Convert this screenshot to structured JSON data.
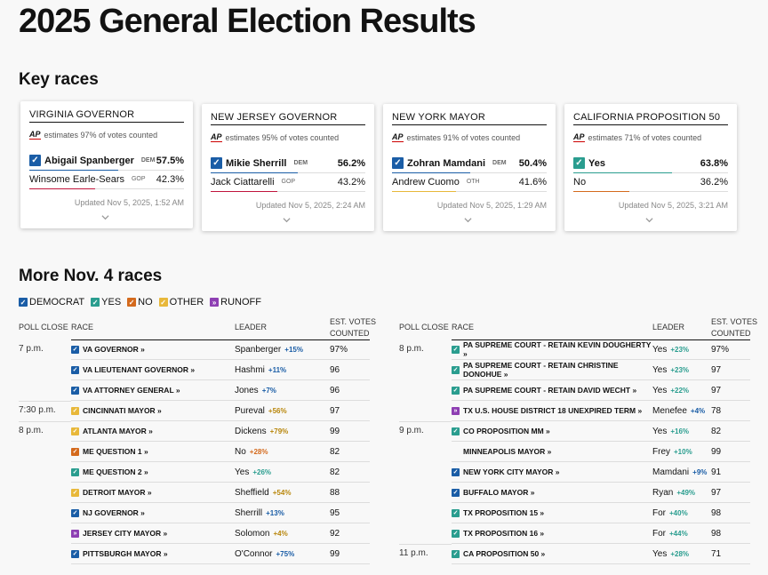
{
  "page_title": "2025 General Election Results",
  "key_races_title": "Key races",
  "more_races_title": "More Nov. 4 races",
  "colors": {
    "dem": "#1a5da6",
    "gop": "#c0143c",
    "yes": "#2a9d8f",
    "no": "#d46a1d",
    "other": "#e8b83a",
    "runoff": "#8e3fb3"
  },
  "cards": [
    {
      "title": "VIRGINIA GOVERNOR",
      "ap_label": "AP",
      "estimate": "estimates 97% of votes counted",
      "candidates": [
        {
          "name": "Abigail Spanberger",
          "party": "DEM",
          "pct": "57.5%",
          "winner": true,
          "color": "#1a5da6",
          "share": 57.5
        },
        {
          "name": "Winsome Earle-Sears",
          "party": "GOP",
          "pct": "42.3%",
          "winner": false,
          "color": "#c0143c",
          "share": 42.3
        }
      ],
      "updated": "Updated Nov 5, 2025, 1:52 AM"
    },
    {
      "title": "NEW JERSEY GOVERNOR",
      "ap_label": "AP",
      "estimate": "estimates 95% of votes counted",
      "candidates": [
        {
          "name": "Mikie Sherrill",
          "party": "DEM",
          "pct": "56.2%",
          "winner": true,
          "color": "#1a5da6",
          "share": 56.2
        },
        {
          "name": "Jack Ciattarelli",
          "party": "GOP",
          "pct": "43.2%",
          "winner": false,
          "color": "#c0143c",
          "share": 43.2
        }
      ],
      "updated": "Updated Nov 5, 2025, 2:24 AM"
    },
    {
      "title": "NEW YORK MAYOR",
      "ap_label": "AP",
      "estimate": "estimates 91% of votes counted",
      "candidates": [
        {
          "name": "Zohran Mamdani",
          "party": "DEM",
          "pct": "50.4%",
          "winner": true,
          "color": "#1a5da6",
          "share": 50.4
        },
        {
          "name": "Andrew Cuomo",
          "party": "OTH",
          "pct": "41.6%",
          "winner": false,
          "color": "#e8b83a",
          "share": 41.6
        }
      ],
      "updated": "Updated Nov 5, 2025, 1:29 AM"
    },
    {
      "title": "CALIFORNIA PROPOSITION 50",
      "ap_label": "AP",
      "estimate": "estimates 71% of votes counted",
      "candidates": [
        {
          "name": "Yes",
          "party": "",
          "pct": "63.8%",
          "winner": true,
          "color": "#2a9d8f",
          "share": 63.8
        },
        {
          "name": "No",
          "party": "",
          "pct": "36.2%",
          "winner": false,
          "color": "#d46a1d",
          "share": 36.2
        }
      ],
      "updated": "Updated Nov 5, 2025, 3:21 AM"
    }
  ],
  "legend": [
    {
      "label": "DEMOCRAT",
      "color": "#1a5da6"
    },
    {
      "label": "YES",
      "color": "#2a9d8f"
    },
    {
      "label": "NO",
      "color": "#d46a1d"
    },
    {
      "label": "OTHER",
      "color": "#e8b83a"
    },
    {
      "label": "RUNOFF",
      "color": "#8e3fb3",
      "glyph": "»"
    }
  ],
  "table_headers": {
    "poll_close": "POLL CLOSE",
    "race": "RACE",
    "leader": "LEADER",
    "votes_line1": "EST. VOTES",
    "votes_line2": "COUNTED"
  },
  "left_table": [
    {
      "close": "7 p.m.",
      "race": "VA GOVERNOR »",
      "mark": "dem",
      "leader": "Spanberger",
      "margin": "+15%",
      "mcolor": "dem",
      "votes": "97%"
    },
    {
      "close": "",
      "race": "VA LIEUTENANT GOVERNOR »",
      "mark": "dem",
      "leader": "Hashmi",
      "margin": "+11%",
      "mcolor": "dem",
      "votes": "96"
    },
    {
      "close": "",
      "race": "VA ATTORNEY GENERAL »",
      "mark": "dem",
      "leader": "Jones",
      "margin": "+7%",
      "mcolor": "dem",
      "votes": "96"
    },
    {
      "close": "7:30 p.m.",
      "race": "CINCINNATI MAYOR »",
      "mark": "other",
      "leader": "Pureval",
      "margin": "+56%",
      "mcolor": "other",
      "votes": "97"
    },
    {
      "close": "8 p.m.",
      "race": "ATLANTA MAYOR »",
      "mark": "other",
      "leader": "Dickens",
      "margin": "+79%",
      "mcolor": "other",
      "votes": "99"
    },
    {
      "close": "",
      "race": "ME QUESTION 1 »",
      "mark": "no",
      "leader": "No",
      "margin": "+28%",
      "mcolor": "no",
      "votes": "82"
    },
    {
      "close": "",
      "race": "ME QUESTION 2 »",
      "mark": "yes",
      "leader": "Yes",
      "margin": "+26%",
      "mcolor": "yes",
      "votes": "82"
    },
    {
      "close": "",
      "race": "DETROIT MAYOR »",
      "mark": "other",
      "leader": "Sheffield",
      "margin": "+54%",
      "mcolor": "other",
      "votes": "88"
    },
    {
      "close": "",
      "race": "NJ GOVERNOR »",
      "mark": "dem",
      "leader": "Sherrill",
      "margin": "+13%",
      "mcolor": "dem",
      "votes": "95"
    },
    {
      "close": "",
      "race": "JERSEY CITY MAYOR »",
      "mark": "runoff",
      "leader": "Solomon",
      "margin": "+4%",
      "mcolor": "other",
      "votes": "92"
    },
    {
      "close": "",
      "race": "PITTSBURGH MAYOR »",
      "mark": "dem",
      "leader": "O'Connor",
      "margin": "+75%",
      "mcolor": "dem",
      "votes": "99"
    }
  ],
  "right_table": [
    {
      "close": "8 p.m.",
      "race": "PA SUPREME COURT - RETAIN KEVIN DOUGHERTY »",
      "mark": "yes",
      "leader": "Yes",
      "margin": "+23%",
      "mcolor": "yes",
      "votes": "97%"
    },
    {
      "close": "",
      "race": "PA SUPREME COURT - RETAIN CHRISTINE DONOHUE »",
      "mark": "yes",
      "leader": "Yes",
      "margin": "+23%",
      "mcolor": "yes",
      "votes": "97"
    },
    {
      "close": "",
      "race": "PA SUPREME COURT - RETAIN DAVID WECHT »",
      "mark": "yes",
      "leader": "Yes",
      "margin": "+22%",
      "mcolor": "yes",
      "votes": "97"
    },
    {
      "close": "",
      "race": "TX U.S. HOUSE DISTRICT 18 UNEXPIRED TERM »",
      "mark": "runoff",
      "leader": "Menefee",
      "margin": "+4%",
      "mcolor": "dem",
      "votes": "78"
    },
    {
      "close": "9 p.m.",
      "race": "CO PROPOSITION MM »",
      "mark": "yes",
      "leader": "Yes",
      "margin": "+16%",
      "mcolor": "yes",
      "votes": "82"
    },
    {
      "close": "",
      "race": "MINNEAPOLIS MAYOR »",
      "mark": "",
      "leader": "Frey",
      "margin": "+10%",
      "mcolor": "yes",
      "votes": "99"
    },
    {
      "close": "",
      "race": "NEW YORK CITY MAYOR »",
      "mark": "dem",
      "leader": "Mamdani",
      "margin": "+9%",
      "mcolor": "dem",
      "votes": "91"
    },
    {
      "close": "",
      "race": "BUFFALO MAYOR »",
      "mark": "dem",
      "leader": "Ryan",
      "margin": "+49%",
      "mcolor": "yes",
      "votes": "97"
    },
    {
      "close": "",
      "race": "TX PROPOSITION 15 »",
      "mark": "yes",
      "leader": "For",
      "margin": "+40%",
      "mcolor": "yes",
      "votes": "98"
    },
    {
      "close": "",
      "race": "TX PROPOSITION 16 »",
      "mark": "yes",
      "leader": "For",
      "margin": "+44%",
      "mcolor": "yes",
      "votes": "98"
    },
    {
      "close": "11 p.m.",
      "race": "CA PROPOSITION 50 »",
      "mark": "yes",
      "leader": "Yes",
      "margin": "+28%",
      "mcolor": "yes",
      "votes": "71"
    }
  ]
}
